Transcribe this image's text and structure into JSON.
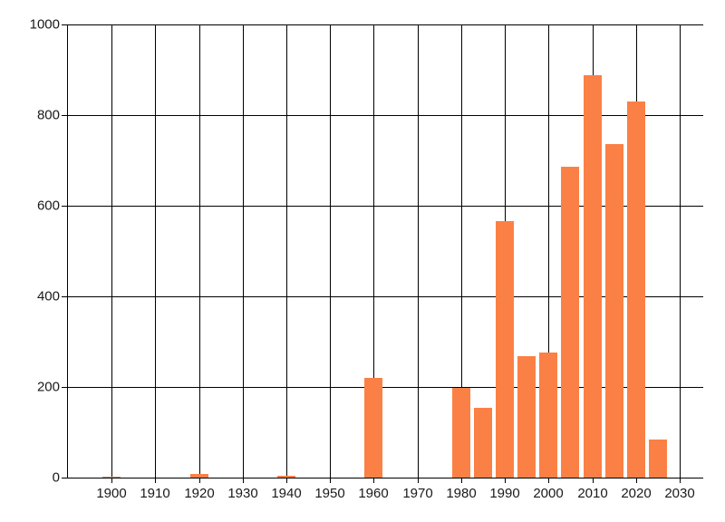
{
  "chart_data": {
    "type": "bar",
    "title": "",
    "xlabel": "",
    "ylabel": "",
    "x": [
      1900,
      1920,
      1940,
      1960,
      1980,
      1985,
      1990,
      1995,
      2000,
      2005,
      2010,
      2015,
      2020,
      2025
    ],
    "values": [
      3,
      8,
      4,
      220,
      198,
      155,
      566,
      268,
      276,
      686,
      888,
      736,
      830,
      84
    ],
    "bar_color": "#FB8045",
    "grid_color": "#000000",
    "axis_color": "#000000",
    "label_color": "#1a1a1a",
    "background_color": "#ffffff",
    "xlim": [
      1889.8,
      2035.4
    ],
    "ylim": [
      0,
      1000
    ],
    "x_ticks": [
      1900,
      1910,
      1920,
      1930,
      1940,
      1950,
      1960,
      1970,
      1980,
      1990,
      2000,
      2010,
      2020,
      2030
    ],
    "x_tick_labels": [
      "1900",
      "1910",
      "1920",
      "1930",
      "1940",
      "1950",
      "1960",
      "1970",
      "1980",
      "1990",
      "2000",
      "2010",
      "2020",
      "2030"
    ],
    "y_ticks": [
      0,
      200,
      400,
      600,
      800,
      1000
    ],
    "y_tick_labels": [
      "0",
      "200",
      "400",
      "600",
      "800",
      "1000"
    ],
    "grid": true,
    "legend": "none"
  }
}
